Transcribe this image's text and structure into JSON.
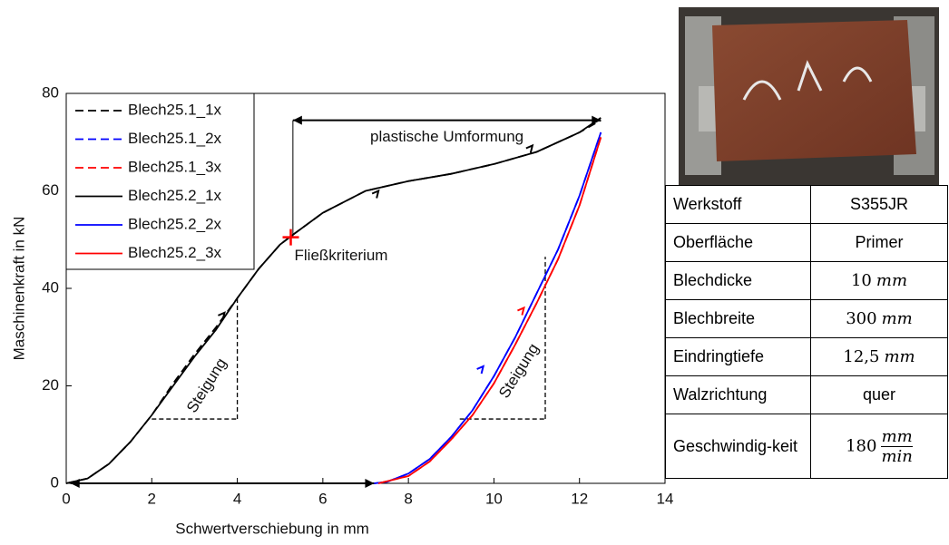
{
  "chart_data": {
    "type": "line",
    "xlabel": "Schwertverschiebung in mm",
    "ylabel": "Maschinenkraft in kN",
    "xlim": [
      0,
      14
    ],
    "ylim": [
      0,
      80
    ],
    "xticks": [
      0,
      2,
      4,
      6,
      8,
      10,
      12,
      14
    ],
    "yticks": [
      0,
      20,
      40,
      60,
      80
    ],
    "grid": false,
    "legend": "upper left",
    "series": [
      {
        "name": "Blech25.1_1x",
        "color": "#000000",
        "line_style": "dashed",
        "x": [
          0,
          0.5,
          1,
          1.5,
          2,
          2.5,
          3,
          3.5,
          4,
          4.5,
          5,
          5.3,
          6,
          7,
          8,
          9,
          10,
          11,
          12,
          12.5
        ],
        "values": [
          0,
          1,
          4,
          8.5,
          14,
          20.5,
          26.5,
          32,
          38,
          44,
          49,
          51,
          55.5,
          60,
          62,
          63.5,
          65.5,
          68,
          72,
          74.5
        ]
      },
      {
        "name": "Blech25.1_2x",
        "color": "#0000ff",
        "line_style": "dashed",
        "x": [
          7.2,
          7.5,
          8,
          8.5,
          9,
          9.5,
          10,
          10.5,
          11,
          11.5,
          12,
          12.5
        ],
        "values": [
          0,
          0.3,
          2,
          5,
          9.5,
          15,
          22,
          30,
          39,
          48,
          59,
          72
        ]
      },
      {
        "name": "Blech25.1_3x",
        "color": "#ff0000",
        "line_style": "dashed",
        "x": [
          7.3,
          8,
          8.5,
          9,
          9.5,
          10,
          10.5,
          11,
          11.5,
          12,
          12.5
        ],
        "values": [
          0,
          1.5,
          4.5,
          9,
          14,
          20.5,
          28.5,
          37,
          46,
          57,
          71
        ]
      },
      {
        "name": "Blech25.2_1x",
        "color": "#000000",
        "line_style": "solid",
        "x": [
          0,
          0.5,
          1,
          1.5,
          2,
          2.5,
          3,
          3.5,
          4,
          4.5,
          5,
          5.3,
          6,
          7,
          8,
          9,
          10,
          11,
          12,
          12.5
        ],
        "values": [
          0,
          1,
          4,
          8.5,
          14,
          20,
          26,
          31.5,
          38,
          44,
          49,
          51,
          55.5,
          60,
          62,
          63.5,
          65.5,
          68,
          72,
          75
        ]
      },
      {
        "name": "Blech25.2_2x",
        "color": "#0000ff",
        "line_style": "solid",
        "x": [
          7.2,
          7.5,
          8,
          8.5,
          9,
          9.5,
          10,
          10.5,
          11,
          11.5,
          12,
          12.5
        ],
        "values": [
          0,
          0.3,
          2,
          5,
          9.5,
          15,
          22,
          30,
          39,
          48,
          59,
          72
        ]
      },
      {
        "name": "Blech25.2_3x",
        "color": "#ff0000",
        "line_style": "solid",
        "x": [
          7.3,
          8,
          8.5,
          9,
          9.5,
          10,
          10.5,
          11,
          11.5,
          12,
          12.5
        ],
        "values": [
          0,
          1.5,
          4.5,
          9,
          14,
          20.5,
          28.5,
          37,
          46,
          57,
          71
        ]
      }
    ],
    "yield_point": {
      "label": "Fließkriterium",
      "x": 5.25,
      "y": 50.5
    },
    "annotations": [
      "plastische Umformung",
      "Steigung",
      "Steigung"
    ]
  },
  "table": {
    "rows": [
      [
        "Werkstoff",
        "S355JR"
      ],
      [
        "Oberfläche",
        "Primer"
      ],
      [
        "Blechdicke",
        {
          "number": "10",
          "unit": "mm"
        }
      ],
      [
        "Blechbreite",
        {
          "number": "300",
          "unit": "mm"
        }
      ],
      [
        "Eindringtiefe",
        {
          "number": "12,5",
          "unit": "mm"
        }
      ],
      [
        "Walzrichtung",
        "quer"
      ],
      [
        "Geschwindig-keit",
        {
          "number": "180",
          "num": "mm",
          "den": "min"
        }
      ]
    ]
  }
}
